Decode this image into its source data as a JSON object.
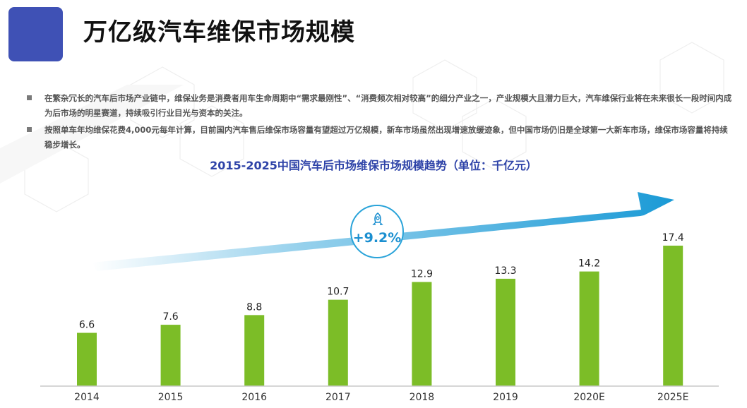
{
  "header": {
    "title": "万亿级汽车维保市场规模",
    "accent_color": "#3f51b5"
  },
  "bullets": [
    "在繁杂冗长的汽车后市场产业链中，维保业务是消费者用车生命周期中“需求最刚性”、“消费频次相对较高”的细分产业之一，产业规模大且潜力巨大，汽车维保行业将在未来很长一段时间内成为后市场的明星赛道，持续吸引行业目光与资本的关注。",
    "按照单车年均维保花费4,000元每年计算，目前国内汽车售后维保市场容量有望超过万亿规模，新车市场虽然出现增速放缓迹象，但中国市场仍旧是全球第一大新车市场，维保市场容量将持续稳步增长。"
  ],
  "growth": {
    "value": "+9.2%",
    "icon": "rocket-icon",
    "color": "#1b8fd0"
  },
  "chart_data": {
    "type": "bar",
    "title": "2015-2025中国汽车后市场维保市场规模趋势（单位：千亿元）",
    "categories": [
      "2014",
      "2015",
      "2016",
      "2017",
      "2018",
      "2019",
      "2020E",
      "2025E"
    ],
    "values": [
      6.6,
      7.6,
      8.8,
      10.7,
      12.9,
      13.3,
      14.2,
      17.4
    ],
    "value_labels": [
      "6.6",
      "7.6",
      "8.8",
      "10.7",
      "12.9",
      "13.3",
      "14.2",
      "17.4"
    ],
    "xlabel": "",
    "ylabel": "",
    "ylim": [
      0,
      20
    ],
    "grid": false,
    "bar_color": "#7cbd27",
    "trend_arrow_color": "#1a9ad6"
  }
}
